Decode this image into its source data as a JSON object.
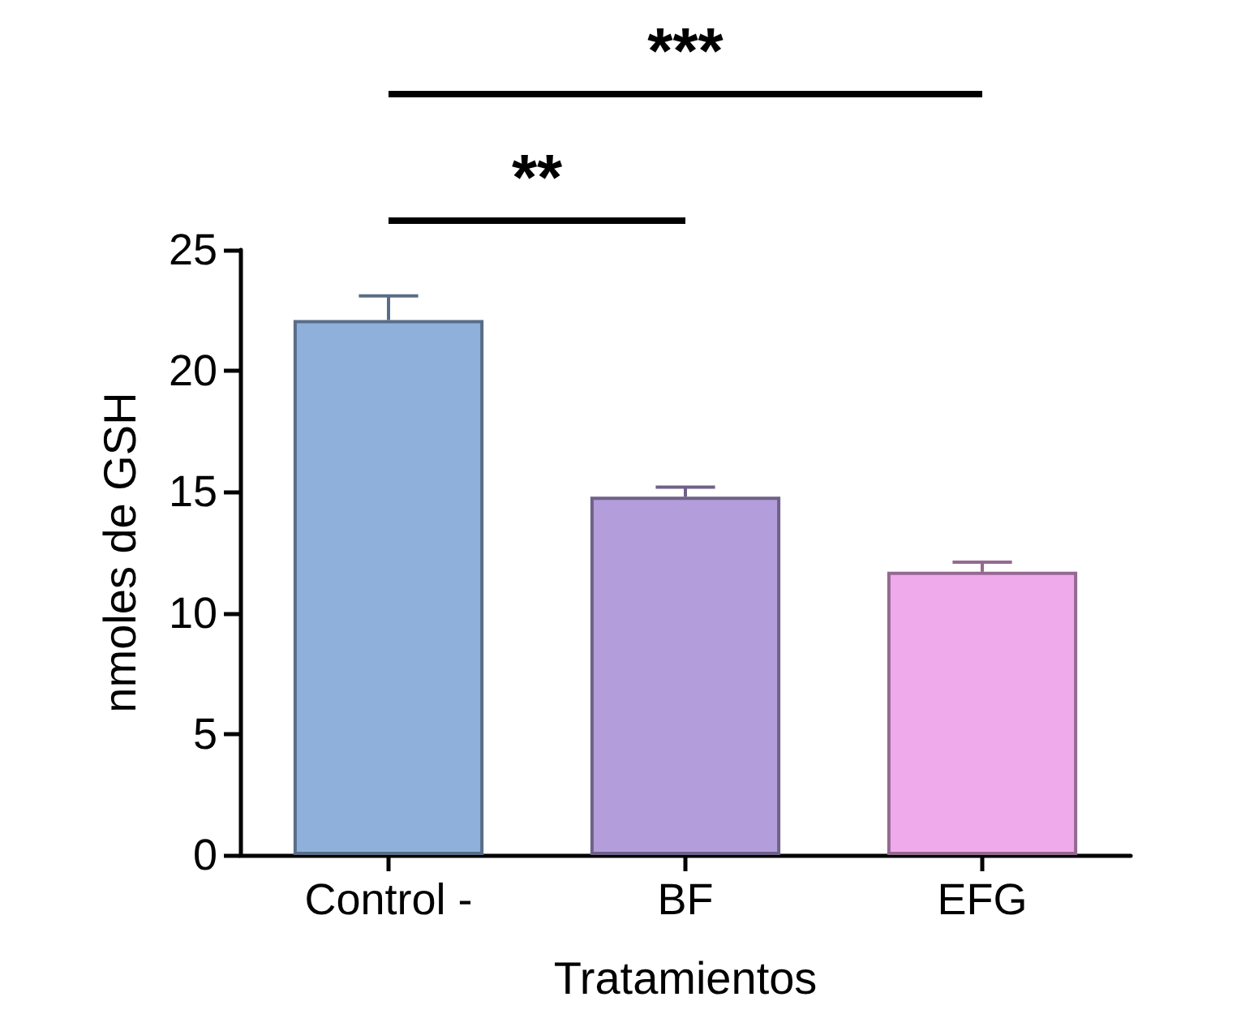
{
  "chart_data": {
    "type": "bar",
    "xlabel": "Tratamientos",
    "ylabel": "nmoles de GSH",
    "categories": [
      "Control -",
      "BF",
      "EFG"
    ],
    "values": [
      22.1,
      14.8,
      11.7
    ],
    "errors": [
      1.0,
      0.4,
      0.4
    ],
    "colors": [
      "#8fb0da",
      "#b39ddb",
      "#eeaaea"
    ],
    "ylim": [
      0,
      25
    ],
    "yticks": [
      0,
      5,
      10,
      15,
      20,
      25
    ],
    "annotations": [
      "**",
      "***"
    ]
  }
}
